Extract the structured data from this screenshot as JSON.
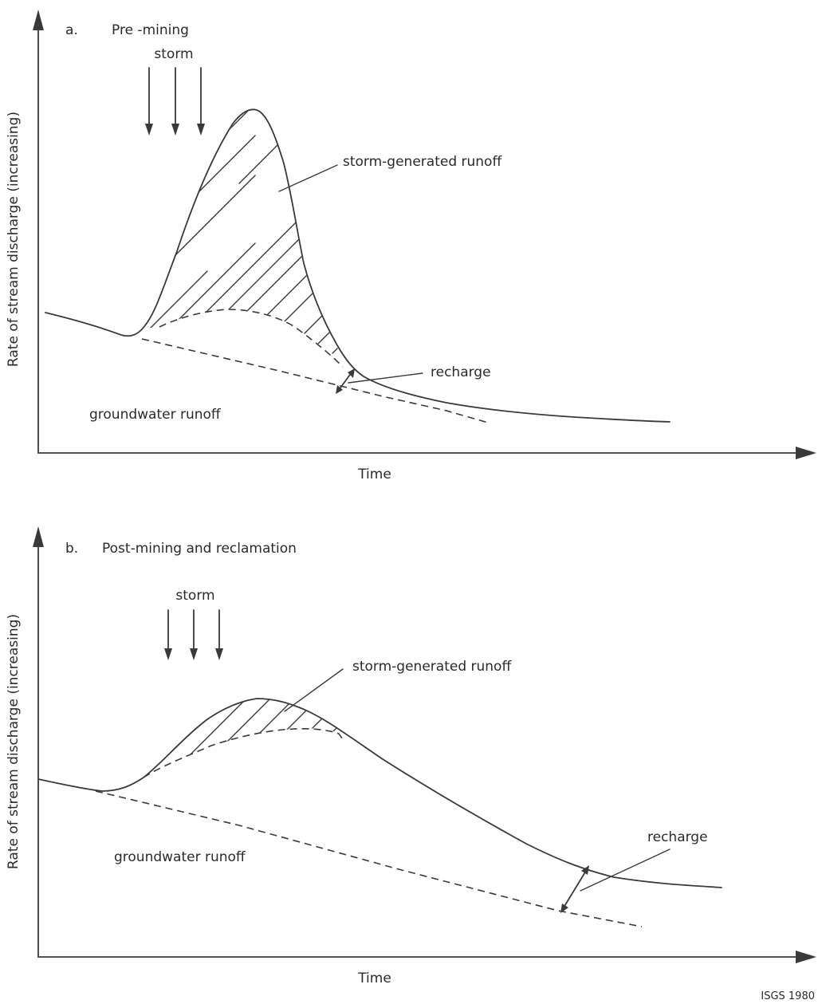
{
  "panel_a": {
    "letter": "a.",
    "title": "Pre -mining",
    "y_axis_label": "Rate of stream discharge (increasing)",
    "x_axis_label": "Time",
    "storm_label": "storm",
    "storm_runoff_label": "storm-generated runoff",
    "recharge_label": "recharge",
    "groundwater_label": "groundwater runoff"
  },
  "panel_b": {
    "letter": "b.",
    "title": "Post-mining and reclamation",
    "y_axis_label": "Rate of stream discharge (increasing)",
    "x_axis_label": "Time",
    "storm_label": "storm",
    "storm_runoff_label": "storm-generated runoff",
    "recharge_label": "recharge",
    "groundwater_label": "groundwater runoff"
  },
  "credit": "ISGS 1980"
}
